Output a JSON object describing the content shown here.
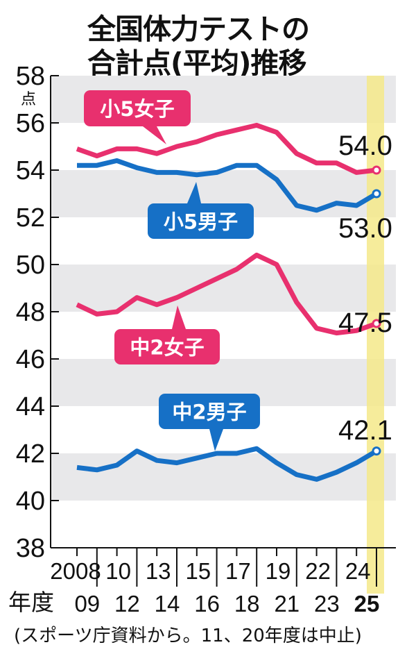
{
  "title": {
    "line1": "全国体力テストの",
    "line2": "合計点(平均)推移"
  },
  "footer": "(スポーツ庁資料から。11、20年度は中止)",
  "colors": {
    "girls": "#e8306e",
    "boys": "#1670c6",
    "band": "#e8e8ea",
    "highlight": "#f5e98a"
  },
  "chart_data": {
    "type": "line",
    "title": "全国体力テストの合計点(平均)推移",
    "xlabel": "年度",
    "ylabel": "点",
    "ylim": [
      38,
      58
    ],
    "yticks": [
      38,
      40,
      42,
      44,
      46,
      48,
      50,
      52,
      54,
      56,
      58
    ],
    "grid": "alternating horizontal bands",
    "x": [
      "2008",
      "09",
      "10",
      "12",
      "13",
      "14",
      "15",
      "16",
      "17",
      "18",
      "19",
      "21",
      "22",
      "23",
      "24",
      "25"
    ],
    "x_tick_labels_upper": [
      "2008",
      "10",
      "13",
      "15",
      "17",
      "19",
      "22",
      "24"
    ],
    "x_tick_labels_lower": [
      "年度",
      "09",
      "12",
      "14",
      "16",
      "18",
      "21",
      "23",
      "25"
    ],
    "highlight_x": "25",
    "series": [
      {
        "name": "小5女子",
        "color": "girls",
        "end_label": "54.0",
        "values": [
          54.9,
          54.6,
          54.9,
          54.9,
          54.7,
          55.0,
          55.2,
          55.5,
          55.7,
          55.9,
          55.6,
          54.7,
          54.3,
          54.3,
          53.9,
          54.0
        ]
      },
      {
        "name": "小5男子",
        "color": "boys",
        "end_label": "53.0",
        "values": [
          54.2,
          54.2,
          54.4,
          54.1,
          53.9,
          53.9,
          53.8,
          53.9,
          54.2,
          54.2,
          53.6,
          52.5,
          52.3,
          52.6,
          52.5,
          53.0
        ]
      },
      {
        "name": "中2女子",
        "color": "girls",
        "end_label": "47.5",
        "values": [
          48.3,
          47.9,
          48.0,
          48.6,
          48.3,
          48.6,
          49.0,
          49.4,
          49.8,
          50.4,
          50.0,
          48.4,
          47.3,
          47.1,
          47.2,
          47.5
        ]
      },
      {
        "name": "中2男子",
        "color": "boys",
        "end_label": "42.1",
        "values": [
          41.4,
          41.3,
          41.5,
          42.1,
          41.7,
          41.6,
          41.8,
          42.0,
          42.0,
          42.2,
          41.6,
          41.1,
          40.9,
          41.2,
          41.6,
          42.1
        ]
      }
    ],
    "annotations": [
      {
        "text": "小5女子",
        "series": 0
      },
      {
        "text": "小5男子",
        "series": 1
      },
      {
        "text": "中2女子",
        "series": 2
      },
      {
        "text": "中2男子",
        "series": 3
      }
    ],
    "source_note": "(スポーツ庁資料から。11、20年度は中止)"
  }
}
